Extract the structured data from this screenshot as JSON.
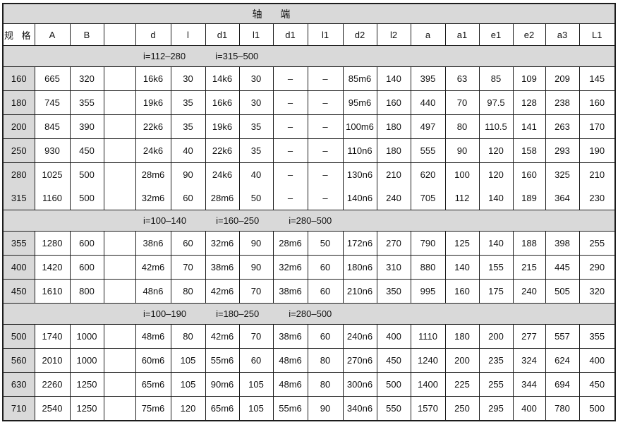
{
  "table": {
    "title": "轴 端",
    "row_header_label": "规 格",
    "columns": [
      "A",
      "B",
      "",
      "d",
      "l",
      "d1",
      "l1",
      "d1",
      "l1",
      "d2",
      "l2",
      "a",
      "a1",
      "e1",
      "e2",
      "a3",
      "L1"
    ],
    "sections": [
      {
        "ratios": [
          "i=112–280",
          "i=315–500"
        ],
        "rows": [
          {
            "spec": "160",
            "values": [
              "665",
              "320",
              "",
              "16k6",
              "30",
              "14k6",
              "30",
              "–",
              "–",
              "85m6",
              "140",
              "395",
              "63",
              "85",
              "109",
              "209",
              "145"
            ]
          },
          {
            "spec": "180",
            "values": [
              "745",
              "355",
              "",
              "19k6",
              "35",
              "16k6",
              "30",
              "–",
              "–",
              "95m6",
              "160",
              "440",
              "70",
              "97.5",
              "128",
              "238",
              "160"
            ]
          },
          {
            "spec": "200",
            "values": [
              "845",
              "390",
              "",
              "22k6",
              "35",
              "19k6",
              "35",
              "–",
              "–",
              "100m6",
              "180",
              "497",
              "80",
              "110.5",
              "141",
              "263",
              "170"
            ]
          },
          {
            "spec": "250",
            "values": [
              "930",
              "450",
              "",
              "24k6",
              "40",
              "22k6",
              "35",
              "–",
              "–",
              "110n6",
              "180",
              "555",
              "90",
              "120",
              "158",
              "293",
              "190"
            ]
          },
          {
            "spec": "280",
            "merge_with_next": true,
            "values": [
              "1025",
              "500",
              "",
              "28m6",
              "90",
              "24k6",
              "40",
              "–",
              "–",
              "130n6",
              "210",
              "620",
              "100",
              "120",
              "160",
              "325",
              "210"
            ]
          },
          {
            "spec": "315",
            "values": [
              "1160",
              "500",
              "",
              "32m6",
              "60",
              "28m6",
              "50",
              "–",
              "–",
              "140n6",
              "240",
              "705",
              "112",
              "140",
              "189",
              "364",
              "230"
            ]
          }
        ]
      },
      {
        "ratios": [
          "i=100–140",
          "i=160–250",
          "i=280–500"
        ],
        "rows": [
          {
            "spec": "355",
            "values": [
              "1280",
              "600",
              "",
              "38n6",
              "60",
              "32m6",
              "90",
              "28m6",
              "50",
              "172n6",
              "270",
              "790",
              "125",
              "140",
              "188",
              "398",
              "255"
            ]
          },
          {
            "spec": "400",
            "values": [
              "1420",
              "600",
              "",
              "42m6",
              "70",
              "38m6",
              "90",
              "32m6",
              "60",
              "180n6",
              "310",
              "880",
              "140",
              "155",
              "215",
              "445",
              "290"
            ]
          },
          {
            "spec": "450",
            "values": [
              "1610",
              "800",
              "",
              "48n6",
              "80",
              "42m6",
              "70",
              "38m6",
              "60",
              "210n6",
              "350",
              "995",
              "160",
              "175",
              "240",
              "505",
              "320"
            ]
          }
        ]
      },
      {
        "ratios": [
          "i=100–190",
          "i=180–250",
          "i=280–500"
        ],
        "rows": [
          {
            "spec": "500",
            "values": [
              "1740",
              "1000",
              "",
              "48m6",
              "80",
              "42m6",
              "70",
              "38m6",
              "60",
              "240n6",
              "400",
              "1110",
              "180",
              "200",
              "277",
              "557",
              "355"
            ]
          },
          {
            "spec": "560",
            "values": [
              "2010",
              "1000",
              "",
              "60m6",
              "105",
              "55m6",
              "60",
              "48m6",
              "80",
              "270n6",
              "450",
              "1240",
              "200",
              "235",
              "324",
              "624",
              "400"
            ]
          },
          {
            "spec": "630",
            "values": [
              "2260",
              "1250",
              "",
              "65m6",
              "105",
              "90m6",
              "105",
              "48m6",
              "80",
              "300n6",
              "500",
              "1400",
              "225",
              "255",
              "344",
              "694",
              "450"
            ]
          },
          {
            "spec": "710",
            "values": [
              "2540",
              "1250",
              "",
              "75m6",
              "120",
              "65m6",
              "105",
              "55m6",
              "90",
              "340n6",
              "550",
              "1570",
              "250",
              "295",
              "400",
              "780",
              "500"
            ]
          }
        ]
      }
    ]
  },
  "colors": {
    "header_fill": "#d9d9d9",
    "border": "#1c1c1c",
    "text": "#111111",
    "background": "#ffffff"
  }
}
